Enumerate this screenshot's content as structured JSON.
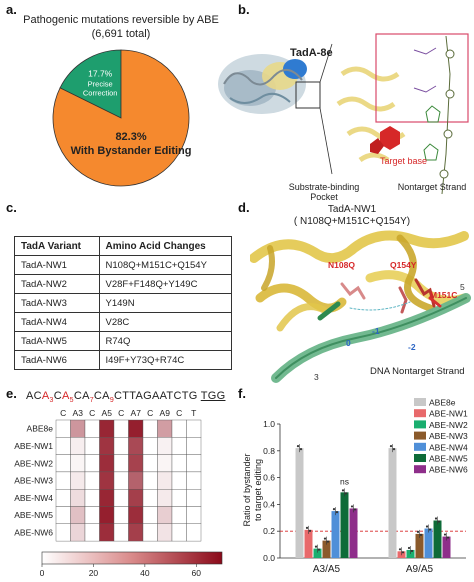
{
  "panels": {
    "a": "a.",
    "b": "b.",
    "c": "c.",
    "d": "d.",
    "e": "e.",
    "f": "f."
  },
  "panel_a": {
    "title_line1": "Pathogenic mutations reversible by ABE",
    "title_line2": "(6,691 total)",
    "chart_data": {
      "type": "pie",
      "slices": [
        {
          "label_lines": [
            "With Bystander Editing"
          ],
          "pct_text": "82.3%",
          "value": 82.3,
          "color": "#F5892E"
        },
        {
          "label_lines": [
            "Precise",
            "Correction"
          ],
          "pct_text": "17.7%",
          "value": 17.7,
          "color": "#1E9E6E"
        }
      ]
    }
  },
  "panel_b": {
    "tada_label": "TadA-8e",
    "target_base": "Target base",
    "pocket_line1": "Substrate-binding",
    "pocket_line2": "Pocket",
    "nontarget": "Nontarget Strand"
  },
  "panel_c": {
    "headers": [
      "TadA Variant",
      "Amino Acid Changes"
    ],
    "rows": [
      [
        "TadA-NW1",
        "N108Q+M151C+Q154Y"
      ],
      [
        "TadA-NW2",
        "V28F+F148Q+Y149C"
      ],
      [
        "TadA-NW3",
        "Y149N"
      ],
      [
        "TadA-NW4",
        "V28C"
      ],
      [
        "TadA-NW5",
        "R74Q"
      ],
      [
        "TadA-NW6",
        "I49F+Y73Q+R74C"
      ]
    ]
  },
  "panel_d": {
    "title_line1": "TadA-NW1",
    "title_line2": "( N108Q+M151C+Q154Y)",
    "res1": "N108Q",
    "res2": "Q154Y",
    "res3": "M151C",
    "n0": "0",
    "n1": "-1",
    "n2": "-2",
    "n5": "5",
    "n3": "3",
    "strand_label": "DNA Nontarget Strand"
  },
  "panel_e": {
    "sequence": {
      "p1": "AC",
      "a3": "A",
      "s3": "3",
      "p2": "C",
      "a5": "A",
      "s5": "5",
      "p3": "CA",
      "s7": "7",
      "p4": "CA",
      "s9": "9",
      "p5": "CTTAGAATCTG",
      "pam": "TGG"
    },
    "chart_data": {
      "type": "heatmap",
      "columns": [
        "C",
        "A3",
        "C",
        "A5",
        "C",
        "A7",
        "C",
        "A9",
        "C",
        "T"
      ],
      "rows": [
        "ABE8e",
        "ABE-NW1",
        "ABE-NW2",
        "ABE-NW3",
        "ABE-NW4",
        "ABE-NW5",
        "ABE-NW6"
      ],
      "values": [
        [
          0,
          30,
          0,
          62,
          0,
          64,
          0,
          28,
          0,
          0
        ],
        [
          0,
          5,
          0,
          58,
          0,
          52,
          0,
          4,
          0,
          0
        ],
        [
          0,
          3,
          0,
          60,
          0,
          54,
          0,
          3,
          0,
          0
        ],
        [
          0,
          6,
          0,
          58,
          0,
          45,
          0,
          6,
          0,
          0
        ],
        [
          0,
          10,
          0,
          62,
          0,
          55,
          0,
          6,
          0,
          0
        ],
        [
          0,
          18,
          0,
          64,
          0,
          60,
          0,
          14,
          0,
          0
        ],
        [
          0,
          12,
          0,
          60,
          0,
          55,
          0,
          8,
          0,
          0
        ]
      ],
      "colorbar_ticks": [
        0,
        20,
        40,
        60
      ],
      "colorbar_range": [
        0,
        70
      ],
      "color_low": "#ffffff",
      "color_high": "#8B0A1A"
    }
  },
  "panel_f": {
    "chart_data": {
      "type": "bar",
      "categories": [
        "A3/A5",
        "A9/A5"
      ],
      "ylabel_line1": "Ratio of bystander",
      "ylabel_line2": "to target editing",
      "ylim": [
        0,
        1.0
      ],
      "yticks": [
        "0.0",
        "0.2",
        "0.4",
        "0.6",
        "0.8",
        "1.0"
      ],
      "threshold": 0.2,
      "threshold_color": "#d62728",
      "annotation": "ns",
      "series": [
        {
          "name": "ABE8e",
          "color": "#C8C8C8",
          "values": [
            0.82,
            0.82
          ]
        },
        {
          "name": "ABE-NW1",
          "color": "#E8696B",
          "values": [
            0.21,
            0.05
          ]
        },
        {
          "name": "ABE-NW2",
          "color": "#1AAE6F",
          "values": [
            0.07,
            0.06
          ]
        },
        {
          "name": "ABE-NW3",
          "color": "#8B5A2B",
          "values": [
            0.13,
            0.18
          ]
        },
        {
          "name": "ABE-NW4",
          "color": "#4F8FD8",
          "values": [
            0.35,
            0.22
          ]
        },
        {
          "name": "ABE-NW5",
          "color": "#0E6B38",
          "values": [
            0.49,
            0.28
          ]
        },
        {
          "name": "ABE-NW6",
          "color": "#8E2E8A",
          "values": [
            0.37,
            0.16
          ]
        }
      ]
    }
  }
}
